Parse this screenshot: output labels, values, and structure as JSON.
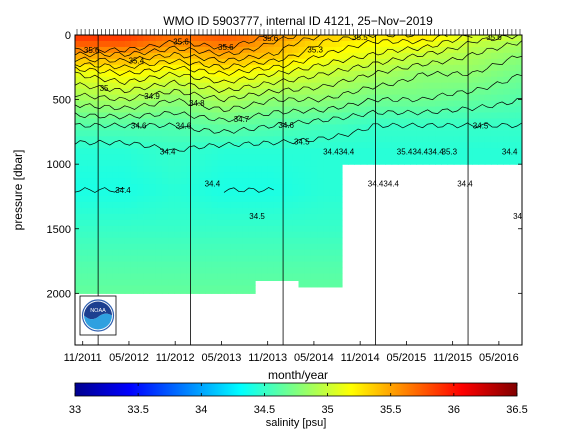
{
  "chart_data": [
    {
      "type": "heatmap",
      "title": "WMO ID 5903777, internal ID 4121, 25−Nov−2019",
      "xlabel": "month/year",
      "ylabel": "pressure [dbar]",
      "x_ticks": [
        "11/2011",
        "05/2012",
        "11/2012",
        "05/2013",
        "11/2013",
        "05/2014",
        "11/2014",
        "05/2015",
        "11/2015",
        "05/2016"
      ],
      "y_ticks": [
        0,
        500,
        1000,
        1500,
        2000
      ],
      "ylim": [
        0,
        2400
      ],
      "y_reversed": true,
      "x_range": [
        "10/2011",
        "08/2016"
      ],
      "year_lines": [
        "01/2012",
        "01/2013",
        "01/2014",
        "01/2015",
        "01/2016"
      ],
      "contour_levels": [
        34.4,
        34.5,
        34.6,
        34.7,
        34.8,
        34.9,
        35.0,
        35.1,
        35.2,
        35.3,
        35.4,
        35.5,
        35.6
      ],
      "contour_labels": [
        "35.6",
        "35.4",
        "35.6",
        "35.6",
        "35.6",
        "35.3",
        "35.5",
        "35.4",
        "35.3",
        "35.6",
        "35",
        "34.9",
        "34.8",
        "34.7",
        "34.6",
        "34.4",
        "34.4",
        "34.4",
        "34.4",
        "34.4",
        "34.4",
        "34.4",
        "34.4",
        "34.5",
        "34.5",
        "34.4",
        "34.4",
        "34.4",
        "34.5",
        "34.5",
        "34.6",
        "34.6"
      ],
      "profile_max_pressure": [
        2000,
        2000,
        2000,
        2000,
        1900,
        1950,
        1000,
        1000,
        1000,
        1000
      ],
      "salinity": {
        "0": [
          35.9,
          35.9,
          35.7,
          35.8,
          35.6,
          35.4,
          35.3,
          35.3,
          35.1,
          35.0
        ],
        "50": [
          35.8,
          35.8,
          35.6,
          35.7,
          35.5,
          35.3,
          35.2,
          35.2,
          35.0,
          34.9
        ],
        "150": [
          35.5,
          35.5,
          35.4,
          35.5,
          35.4,
          35.2,
          35.1,
          35.0,
          34.9,
          34.8
        ],
        "300": [
          35.1,
          35.2,
          35.1,
          35.2,
          35.1,
          35.0,
          34.9,
          34.8,
          34.8,
          34.7
        ],
        "500": [
          34.85,
          34.9,
          34.8,
          34.9,
          34.8,
          34.8,
          34.7,
          34.7,
          34.65,
          34.6
        ],
        "700": [
          34.6,
          34.6,
          34.6,
          34.65,
          34.6,
          34.55,
          34.5,
          34.5,
          34.5,
          34.5
        ],
        "900": [
          34.45,
          34.45,
          34.5,
          34.45,
          34.45,
          34.45,
          34.45,
          34.45,
          34.45,
          34.45
        ],
        "1200": [
          34.4,
          34.4,
          34.45,
          34.4,
          34.4,
          34.45,
          34.45,
          34.45,
          34.45,
          34.45
        ],
        "1500": [
          34.5,
          34.5,
          34.5,
          34.5,
          34.5,
          34.5,
          34.5,
          34.5,
          34.5,
          34.5
        ],
        "1800": [
          34.6,
          34.6,
          34.6,
          34.6,
          34.6,
          34.6,
          34.6,
          34.6,
          34.6,
          34.6
        ],
        "2000": [
          34.65,
          34.65,
          34.65,
          34.65,
          34.65,
          34.65,
          34.65,
          34.65,
          34.65,
          34.65
        ]
      }
    },
    {
      "type": "colorbar",
      "label": "salinity [psu]",
      "range": [
        33,
        36.5
      ],
      "ticks": [
        "33",
        "33.5",
        "34",
        "34.5",
        "35",
        "35.5",
        "36",
        "36.5"
      ],
      "colormap": "jet"
    }
  ],
  "logo": {
    "text": "NOAA",
    "icon": "noaa-logo-icon"
  }
}
